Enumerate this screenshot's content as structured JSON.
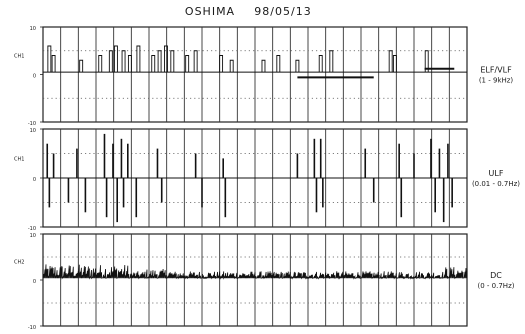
{
  "chart_data": {
    "type": "line",
    "title": "OSHIMA",
    "date": "98/05/13",
    "panels": [
      {
        "id": "elf",
        "label": "ELF/VLF",
        "band": "(1 - 9kHz)",
        "channel": "CH1",
        "ylim": [
          -10,
          10
        ],
        "yticks": [
          {
            "value": 10,
            "label": "10"
          },
          {
            "value": 0,
            "label": "0"
          },
          {
            "value": -10,
            "label": "-10"
          }
        ],
        "style": "spikes",
        "baseline": 0.5,
        "events": [
          {
            "t": 0.015,
            "v": 6
          },
          {
            "t": 0.025,
            "v": 4
          },
          {
            "t": 0.09,
            "v": 3
          },
          {
            "t": 0.135,
            "v": 4
          },
          {
            "t": 0.16,
            "v": 5
          },
          {
            "t": 0.172,
            "v": 6
          },
          {
            "t": 0.19,
            "v": 5
          },
          {
            "t": 0.205,
            "v": 4
          },
          {
            "t": 0.225,
            "v": 6
          },
          {
            "t": 0.26,
            "v": 4
          },
          {
            "t": 0.275,
            "v": 5
          },
          {
            "t": 0.29,
            "v": 6
          },
          {
            "t": 0.305,
            "v": 5
          },
          {
            "t": 0.34,
            "v": 4
          },
          {
            "t": 0.36,
            "v": 5
          },
          {
            "t": 0.42,
            "v": 4
          },
          {
            "t": 0.445,
            "v": 3
          },
          {
            "t": 0.52,
            "v": 3
          },
          {
            "t": 0.555,
            "v": 4
          },
          {
            "t": 0.6,
            "v": 3
          },
          {
            "t": 0.655,
            "v": 4
          },
          {
            "t": 0.68,
            "v": 5
          },
          {
            "t": 0.82,
            "v": 5
          },
          {
            "t": 0.83,
            "v": 4
          },
          {
            "t": 0.905,
            "v": 5
          }
        ],
        "blocks": [
          {
            "start": 0.6,
            "end": 0.78,
            "level": -0.6
          },
          {
            "start": 0.9,
            "end": 0.97,
            "level": 1.2
          }
        ]
      },
      {
        "id": "ulf",
        "label": "ULF",
        "band": "(0.01 - 0.7Hz)",
        "channel": "CH1",
        "ylim": [
          -10,
          10
        ],
        "yticks": [
          {
            "value": 10,
            "label": "10"
          },
          {
            "value": 0,
            "label": "0"
          },
          {
            "value": -10,
            "label": "-10"
          }
        ],
        "style": "bursts",
        "baseline": 0,
        "events": [
          {
            "t": 0.01,
            "v": 7
          },
          {
            "t": 0.015,
            "v": -6
          },
          {
            "t": 0.025,
            "v": 5
          },
          {
            "t": 0.06,
            "v": -5
          },
          {
            "t": 0.08,
            "v": 6
          },
          {
            "t": 0.1,
            "v": -7
          },
          {
            "t": 0.145,
            "v": 9
          },
          {
            "t": 0.15,
            "v": -8
          },
          {
            "t": 0.165,
            "v": 7
          },
          {
            "t": 0.175,
            "v": -9
          },
          {
            "t": 0.185,
            "v": 8
          },
          {
            "t": 0.19,
            "v": -6
          },
          {
            "t": 0.2,
            "v": 7
          },
          {
            "t": 0.22,
            "v": -8
          },
          {
            "t": 0.27,
            "v": 6
          },
          {
            "t": 0.28,
            "v": -5
          },
          {
            "t": 0.36,
            "v": 5
          },
          {
            "t": 0.375,
            "v": -6
          },
          {
            "t": 0.425,
            "v": 4
          },
          {
            "t": 0.43,
            "v": -8
          },
          {
            "t": 0.6,
            "v": 5
          },
          {
            "t": 0.64,
            "v": 8
          },
          {
            "t": 0.645,
            "v": -7
          },
          {
            "t": 0.655,
            "v": 8
          },
          {
            "t": 0.66,
            "v": -6
          },
          {
            "t": 0.76,
            "v": 6
          },
          {
            "t": 0.78,
            "v": -5
          },
          {
            "t": 0.84,
            "v": 7
          },
          {
            "t": 0.845,
            "v": -8
          },
          {
            "t": 0.875,
            "v": 5
          },
          {
            "t": 0.915,
            "v": 8
          },
          {
            "t": 0.925,
            "v": -7
          },
          {
            "t": 0.935,
            "v": 6
          },
          {
            "t": 0.945,
            "v": -9
          },
          {
            "t": 0.955,
            "v": 7
          },
          {
            "t": 0.965,
            "v": -6
          }
        ]
      },
      {
        "id": "dc",
        "label": "DC",
        "band": "(0 - 0.7Hz)",
        "channel": "CH2",
        "ylim": [
          -10,
          10
        ],
        "yticks": [
          {
            "value": 10,
            "label": "10"
          },
          {
            "value": 0,
            "label": "0"
          },
          {
            "value": -10,
            "label": "-10"
          }
        ],
        "style": "noise",
        "baseline": 0.4,
        "amplitude": 1.5,
        "active_regions": [
          {
            "start": 0.0,
            "end": 0.2,
            "amplitude": 3
          },
          {
            "start": 0.24,
            "end": 0.3,
            "amplitude": 2
          },
          {
            "start": 0.95,
            "end": 1.0,
            "amplitude": 2.5
          }
        ]
      }
    ],
    "vertical_divisions": 24,
    "horizontal_dotted_lines": [
      5,
      -5
    ],
    "grid": true
  }
}
